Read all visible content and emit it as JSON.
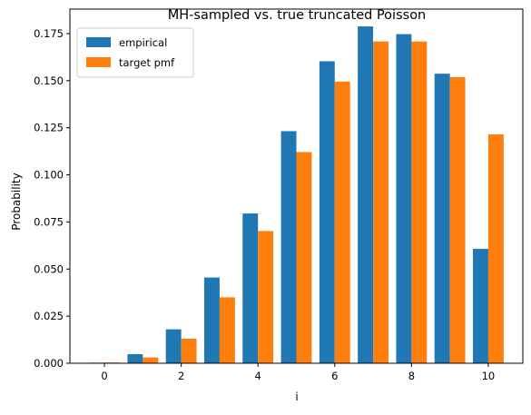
{
  "chart_data": {
    "type": "bar",
    "title": "MH-sampled vs. true truncated Poisson",
    "xlabel": "i",
    "ylabel": "Probability",
    "x": [
      0,
      1,
      2,
      3,
      4,
      5,
      6,
      7,
      8,
      9,
      10
    ],
    "xticks": [
      0,
      2,
      4,
      6,
      8,
      10
    ],
    "yticks": [
      "0.000",
      "0.025",
      "0.050",
      "0.075",
      "0.100",
      "0.125",
      "0.150",
      "0.175"
    ],
    "xlim": [
      -0.9,
      10.9
    ],
    "ylim": [
      0,
      0.188
    ],
    "grid": false,
    "legend_position": "top-left",
    "series": [
      {
        "name": "empirical",
        "color": "#1f77b4",
        "values": [
          0.0003,
          0.0048,
          0.018,
          0.0455,
          0.0795,
          0.1232,
          0.1603,
          0.1788,
          0.1747,
          0.1537,
          0.0607
        ]
      },
      {
        "name": "target pmf",
        "color": "#ff7f0e",
        "values": [
          0.0004,
          0.0031,
          0.013,
          0.035,
          0.0702,
          0.1121,
          0.1495,
          0.1708,
          0.1708,
          0.1519,
          0.1215
        ]
      }
    ]
  }
}
